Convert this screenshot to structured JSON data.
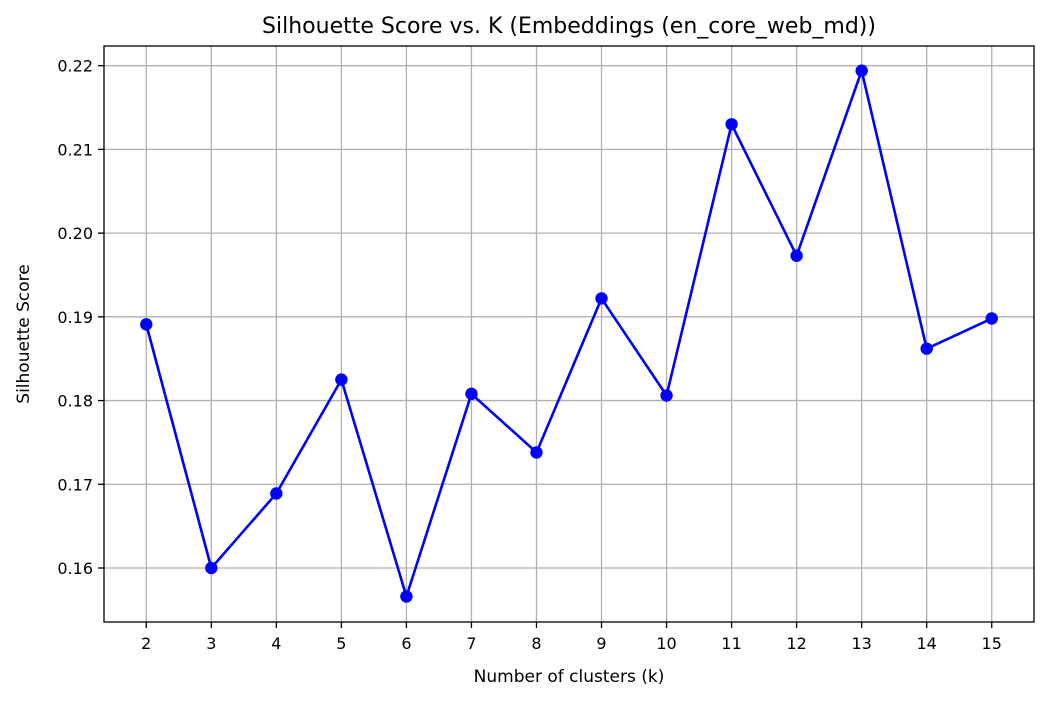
{
  "chart_data": {
    "type": "line",
    "title": "Silhouette Score vs. K (Embeddings (en_core_web_md))",
    "xlabel": "Number of clusters (k)",
    "ylabel": "Silhouette Score",
    "x": [
      2,
      3,
      4,
      5,
      6,
      7,
      8,
      9,
      10,
      11,
      12,
      13,
      14,
      15
    ],
    "x_tick_labels": [
      "2",
      "3",
      "4",
      "5",
      "6",
      "7",
      "8",
      "9",
      "10",
      "11",
      "12",
      "13",
      "14",
      "15"
    ],
    "series": [
      {
        "values": [
          0.1891,
          0.16,
          0.1689,
          0.1825,
          0.1566,
          0.1808,
          0.1738,
          0.1922,
          0.1806,
          0.213,
          0.1973,
          0.2194,
          0.1862,
          0.1898
        ],
        "color": "#0000ff",
        "marker": "circle"
      }
    ],
    "y_ticks": [
      0.16,
      0.17,
      0.18,
      0.19,
      0.2,
      0.21,
      0.22
    ],
    "y_tick_labels": [
      "0.16",
      "0.17",
      "0.18",
      "0.19",
      "0.20",
      "0.21",
      "0.22"
    ],
    "xlim": [
      1.35,
      15.65
    ],
    "ylim": [
      0.15355,
      0.22235
    ],
    "grid": true,
    "grid_color": "#b0b0b0",
    "line_color": "#0000ff"
  }
}
